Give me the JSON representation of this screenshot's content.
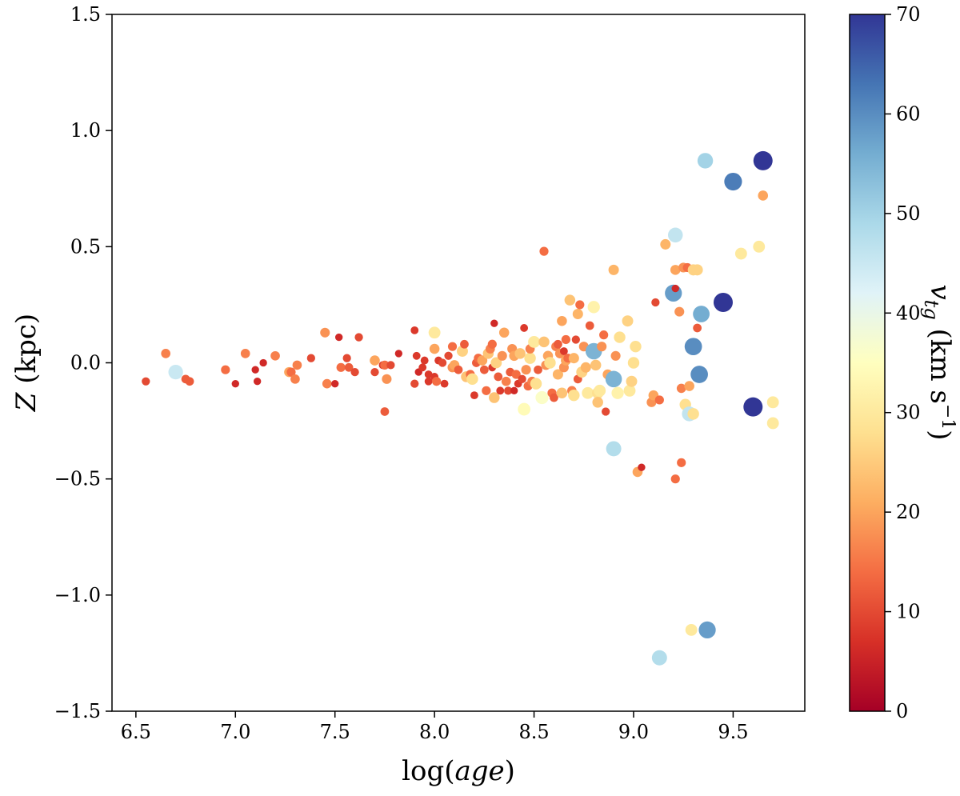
{
  "chart_data": {
    "type": "scatter",
    "xlabel": "log(age)",
    "ylabel": "Z (kpc)",
    "colorbar_label": "v_tg (km s^-1)",
    "xlim": [
      6.38,
      9.86
    ],
    "ylim": [
      -1.5,
      1.5
    ],
    "x_ticks": [
      "6.5",
      "7.0",
      "7.5",
      "8.0",
      "8.5",
      "9.0",
      "9.5"
    ],
    "x_tick_values": [
      6.5,
      7.0,
      7.5,
      8.0,
      8.5,
      9.0,
      9.5
    ],
    "y_ticks": [
      "1.5",
      "1.0",
      "0.5",
      "0.0",
      "−0.5",
      "−1.0",
      "−1.5"
    ],
    "y_tick_values": [
      1.5,
      1.0,
      0.5,
      0.0,
      -0.5,
      -1.0,
      -1.5
    ],
    "colorbar_ticks": [
      "70",
      "60",
      "50",
      "40",
      "30",
      "20",
      "10",
      "0"
    ],
    "colorbar_tick_values": [
      70,
      60,
      50,
      40,
      30,
      20,
      10,
      0
    ],
    "colorbar_range": [
      0,
      70
    ],
    "colormap": [
      "#a50026",
      "#d73027",
      "#f46d43",
      "#fdae61",
      "#fee090",
      "#ffffbf",
      "#e0f3f8",
      "#abd9e9",
      "#74add1",
      "#4575b4",
      "#313695"
    ],
    "points": [
      [
        6.55,
        -0.08,
        10
      ],
      [
        6.65,
        0.04,
        16
      ],
      [
        6.7,
        -0.04,
        45
      ],
      [
        6.75,
        -0.07,
        12
      ],
      [
        6.77,
        -0.08,
        12
      ],
      [
        6.95,
        -0.03,
        14
      ],
      [
        7.0,
        -0.09,
        6
      ],
      [
        7.05,
        0.04,
        16
      ],
      [
        7.1,
        -0.03,
        6
      ],
      [
        7.11,
        -0.08,
        6
      ],
      [
        7.14,
        0.0,
        6
      ],
      [
        7.2,
        0.03,
        16
      ],
      [
        7.27,
        -0.04,
        20
      ],
      [
        7.28,
        -0.04,
        14
      ],
      [
        7.3,
        -0.07,
        16
      ],
      [
        7.31,
        -0.01,
        16
      ],
      [
        7.38,
        0.02,
        10
      ],
      [
        7.45,
        0.13,
        18
      ],
      [
        7.46,
        -0.09,
        16
      ],
      [
        7.5,
        -0.09,
        6
      ],
      [
        7.52,
        0.11,
        6
      ],
      [
        7.53,
        -0.02,
        14
      ],
      [
        7.56,
        0.02,
        10
      ],
      [
        7.57,
        -0.02,
        12
      ],
      [
        7.6,
        -0.04,
        10
      ],
      [
        7.62,
        0.11,
        10
      ],
      [
        7.7,
        0.01,
        20
      ],
      [
        7.7,
        -0.04,
        10
      ],
      [
        7.74,
        -0.01,
        8
      ],
      [
        7.75,
        -0.01,
        14
      ],
      [
        7.75,
        -0.21,
        12
      ],
      [
        7.76,
        -0.07,
        18
      ],
      [
        7.78,
        -0.01,
        10
      ],
      [
        7.82,
        0.04,
        6
      ],
      [
        7.9,
        0.14,
        8
      ],
      [
        7.9,
        -0.09,
        10
      ],
      [
        7.91,
        0.03,
        8
      ],
      [
        7.92,
        -0.04,
        6
      ],
      [
        7.94,
        -0.02,
        8
      ],
      [
        7.95,
        0.01,
        8
      ],
      [
        7.97,
        -0.08,
        8
      ],
      [
        7.97,
        -0.05,
        8
      ],
      [
        8.0,
        0.13,
        30
      ],
      [
        8.0,
        0.06,
        20
      ],
      [
        8.0,
        -0.06,
        8
      ],
      [
        8.01,
        -0.08,
        14
      ],
      [
        8.02,
        0.01,
        8
      ],
      [
        8.04,
        0.0,
        10
      ],
      [
        8.05,
        -0.09,
        8
      ],
      [
        8.07,
        0.03,
        10
      ],
      [
        8.09,
        -0.02,
        18
      ],
      [
        8.09,
        0.07,
        14
      ],
      [
        8.1,
        -0.01,
        20
      ],
      [
        8.12,
        -0.03,
        12
      ],
      [
        8.14,
        0.05,
        26
      ],
      [
        8.15,
        0.08,
        12
      ],
      [
        8.16,
        -0.06,
        24
      ],
      [
        8.18,
        -0.05,
        14
      ],
      [
        8.19,
        -0.07,
        28
      ],
      [
        8.2,
        -0.14,
        8
      ],
      [
        8.21,
        0.0,
        12
      ],
      [
        8.22,
        0.02,
        14
      ],
      [
        8.24,
        0.01,
        20
      ],
      [
        8.25,
        -0.03,
        12
      ],
      [
        8.26,
        -0.12,
        14
      ],
      [
        8.27,
        0.04,
        24
      ],
      [
        8.28,
        0.06,
        16
      ],
      [
        8.29,
        0.08,
        14
      ],
      [
        8.29,
        -0.02,
        8
      ],
      [
        8.3,
        0.17,
        6
      ],
      [
        8.3,
        -0.15,
        24
      ],
      [
        8.31,
        0.0,
        26
      ],
      [
        8.32,
        -0.06,
        12
      ],
      [
        8.33,
        -0.12,
        8
      ],
      [
        8.34,
        0.03,
        18
      ],
      [
        8.35,
        0.13,
        20
      ],
      [
        8.36,
        -0.08,
        16
      ],
      [
        8.37,
        -0.12,
        10
      ],
      [
        8.38,
        -0.04,
        12
      ],
      [
        8.39,
        0.06,
        18
      ],
      [
        8.4,
        0.03,
        20
      ],
      [
        8.4,
        -0.12,
        6
      ],
      [
        8.41,
        -0.05,
        14
      ],
      [
        8.42,
        -0.09,
        8
      ],
      [
        8.43,
        0.04,
        24
      ],
      [
        8.44,
        -0.07,
        10
      ],
      [
        8.45,
        -0.2,
        34
      ],
      [
        8.45,
        0.15,
        8
      ],
      [
        8.46,
        -0.03,
        18
      ],
      [
        8.47,
        -0.1,
        14
      ],
      [
        8.48,
        0.02,
        28
      ],
      [
        8.48,
        0.06,
        16
      ],
      [
        8.49,
        -0.08,
        16
      ],
      [
        8.5,
        0.09,
        30
      ],
      [
        8.51,
        -0.09,
        28
      ],
      [
        8.52,
        -0.03,
        12
      ],
      [
        8.54,
        -0.15,
        36
      ],
      [
        8.55,
        0.48,
        14
      ],
      [
        8.55,
        0.09,
        24
      ],
      [
        8.56,
        -0.01,
        18
      ],
      [
        8.57,
        0.03,
        20
      ],
      [
        8.58,
        0.0,
        28
      ],
      [
        8.59,
        -0.13,
        14
      ],
      [
        8.6,
        -0.15,
        12
      ],
      [
        8.61,
        0.07,
        16
      ],
      [
        8.62,
        -0.05,
        22
      ],
      [
        8.62,
        0.08,
        12
      ],
      [
        8.63,
        0.04,
        18
      ],
      [
        8.64,
        0.18,
        20
      ],
      [
        8.64,
        -0.13,
        24
      ],
      [
        8.65,
        0.05,
        8
      ],
      [
        8.65,
        -0.02,
        18
      ],
      [
        8.66,
        0.1,
        14
      ],
      [
        8.66,
        0.01,
        20
      ],
      [
        8.67,
        0.02,
        14
      ],
      [
        8.68,
        0.27,
        24
      ],
      [
        8.69,
        -0.12,
        16
      ],
      [
        8.7,
        -0.14,
        28
      ],
      [
        8.7,
        0.02,
        22
      ],
      [
        8.71,
        0.1,
        10
      ],
      [
        8.72,
        0.21,
        22
      ],
      [
        8.72,
        -0.07,
        12
      ],
      [
        8.73,
        0.25,
        14
      ],
      [
        8.74,
        -0.04,
        26
      ],
      [
        8.75,
        0.07,
        18
      ],
      [
        8.76,
        -0.02,
        22
      ],
      [
        8.77,
        -0.13,
        30
      ],
      [
        8.78,
        0.16,
        12
      ],
      [
        8.79,
        0.06,
        10
      ],
      [
        8.8,
        0.05,
        55
      ],
      [
        8.8,
        0.24,
        32
      ],
      [
        8.81,
        -0.01,
        24
      ],
      [
        8.82,
        -0.13,
        28
      ],
      [
        8.82,
        -0.17,
        24
      ],
      [
        8.83,
        -0.12,
        30
      ],
      [
        8.84,
        0.07,
        18
      ],
      [
        8.85,
        0.12,
        14
      ],
      [
        8.86,
        -0.21,
        10
      ],
      [
        8.87,
        -0.05,
        20
      ],
      [
        8.9,
        0.4,
        22
      ],
      [
        8.9,
        -0.07,
        55
      ],
      [
        8.9,
        -0.37,
        48
      ],
      [
        8.91,
        0.03,
        18
      ],
      [
        8.92,
        -0.13,
        32
      ],
      [
        8.93,
        0.11,
        28
      ],
      [
        8.97,
        0.18,
        26
      ],
      [
        8.98,
        -0.12,
        30
      ],
      [
        8.99,
        -0.08,
        26
      ],
      [
        9.0,
        0.0,
        28
      ],
      [
        9.01,
        0.07,
        28
      ],
      [
        9.02,
        -0.47,
        20
      ],
      [
        9.04,
        -0.45,
        6
      ],
      [
        9.09,
        -0.17,
        18
      ],
      [
        9.1,
        -0.14,
        20
      ],
      [
        9.11,
        0.26,
        10
      ],
      [
        9.13,
        -1.27,
        48
      ],
      [
        9.13,
        -0.16,
        14
      ],
      [
        9.16,
        0.51,
        22
      ],
      [
        9.2,
        0.3,
        58
      ],
      [
        9.21,
        0.32,
        6
      ],
      [
        9.21,
        -0.5,
        14
      ],
      [
        9.21,
        0.55,
        46
      ],
      [
        9.21,
        0.4,
        20
      ],
      [
        9.23,
        0.22,
        18
      ],
      [
        9.24,
        -0.43,
        14
      ],
      [
        9.24,
        -0.11,
        16
      ],
      [
        9.25,
        0.41,
        18
      ],
      [
        9.26,
        -0.18,
        28
      ],
      [
        9.27,
        0.41,
        14
      ],
      [
        9.28,
        -0.1,
        20
      ],
      [
        9.28,
        -0.22,
        46
      ],
      [
        9.29,
        -1.15,
        30
      ],
      [
        9.3,
        0.07,
        60
      ],
      [
        9.3,
        0.4,
        26
      ],
      [
        9.3,
        -0.22,
        28
      ],
      [
        9.32,
        0.15,
        12
      ],
      [
        9.32,
        0.4,
        26
      ],
      [
        9.33,
        -0.05,
        60
      ],
      [
        9.34,
        0.21,
        56
      ],
      [
        9.36,
        0.87,
        50
      ],
      [
        9.37,
        -1.15,
        58
      ],
      [
        9.45,
        0.26,
        70
      ],
      [
        9.5,
        0.78,
        62
      ],
      [
        9.54,
        0.47,
        30
      ],
      [
        9.6,
        -0.19,
        70
      ],
      [
        9.63,
        0.5,
        30
      ],
      [
        9.65,
        0.87,
        70
      ],
      [
        9.65,
        0.72,
        20
      ],
      [
        9.7,
        -0.17,
        30
      ],
      [
        9.7,
        -0.26,
        30
      ]
    ]
  }
}
